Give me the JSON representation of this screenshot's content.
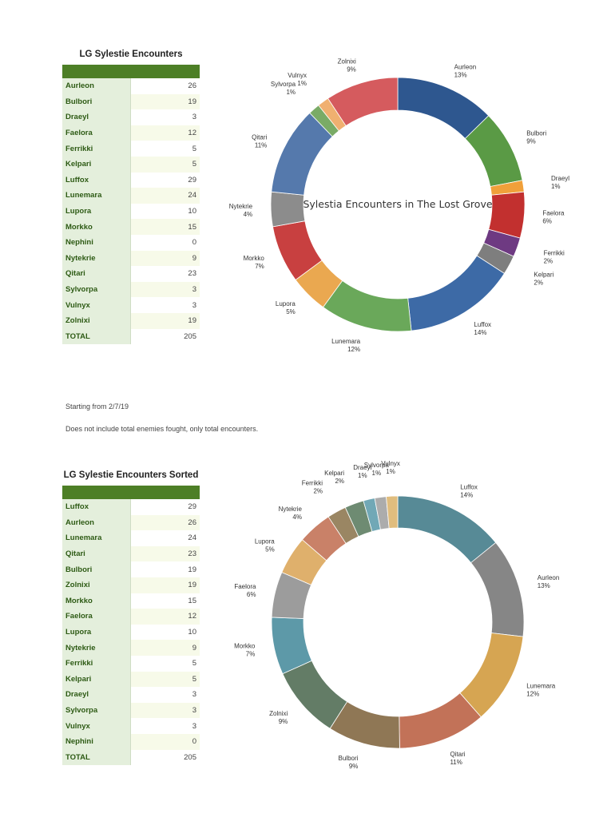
{
  "table1": {
    "title": "LG Sylestie Encounters",
    "rows": [
      {
        "name": "Aurleon",
        "value": "26"
      },
      {
        "name": "Bulbori",
        "value": "19"
      },
      {
        "name": "Draeyl",
        "value": "3"
      },
      {
        "name": "Faelora",
        "value": "12"
      },
      {
        "name": "Ferrikki",
        "value": "5"
      },
      {
        "name": "Kelpari",
        "value": "5"
      },
      {
        "name": "Luffox",
        "value": "29"
      },
      {
        "name": "Lunemara",
        "value": "24"
      },
      {
        "name": "Lupora",
        "value": "10"
      },
      {
        "name": "Morkko",
        "value": "15"
      },
      {
        "name": "Nephini",
        "value": "0"
      },
      {
        "name": "Nytekrie",
        "value": "9"
      },
      {
        "name": "Qitari",
        "value": "23"
      },
      {
        "name": "Sylvorpa",
        "value": "3"
      },
      {
        "name": "Vulnyx",
        "value": "3"
      },
      {
        "name": "Zolnixi",
        "value": "19"
      }
    ],
    "total_label": "TOTAL",
    "total_value": "205"
  },
  "notes": {
    "line1": "Starting from 2/7/19",
    "line2": "Does not include total enemies fought, only total encounters."
  },
  "table2": {
    "title": "LG Sylestie Encounters Sorted",
    "rows": [
      {
        "name": "Luffox",
        "value": "29"
      },
      {
        "name": "Aurleon",
        "value": "26"
      },
      {
        "name": "Lunemara",
        "value": "24"
      },
      {
        "name": "Qitari",
        "value": "23"
      },
      {
        "name": "Bulbori",
        "value": "19"
      },
      {
        "name": "Zolnixi",
        "value": "19"
      },
      {
        "name": "Morkko",
        "value": "15"
      },
      {
        "name": "Faelora",
        "value": "12"
      },
      {
        "name": "Lupora",
        "value": "10"
      },
      {
        "name": "Nytekrie",
        "value": "9"
      },
      {
        "name": "Ferrikki",
        "value": "5"
      },
      {
        "name": "Kelpari",
        "value": "5"
      },
      {
        "name": "Draeyl",
        "value": "3"
      },
      {
        "name": "Sylvorpa",
        "value": "3"
      },
      {
        "name": "Vulnyx",
        "value": "3"
      },
      {
        "name": "Nephini",
        "value": "0"
      }
    ],
    "total_label": "TOTAL",
    "total_value": "205"
  },
  "chart_data": [
    {
      "type": "pie",
      "style": "donut",
      "title": "Sylestia Encounters in The Lost Grove",
      "slices": [
        {
          "label": "Aurleon",
          "value": 26,
          "pct": "13%",
          "color": "#2e578f"
        },
        {
          "label": "Bulbori",
          "value": 19,
          "pct": "9%",
          "color": "#5a9a45"
        },
        {
          "label": "Draeyl",
          "value": 3,
          "pct": "1%",
          "color": "#f0a03a"
        },
        {
          "label": "Faelora",
          "value": 12,
          "pct": "6%",
          "color": "#c2302f"
        },
        {
          "label": "Ferrikki",
          "value": 5,
          "pct": "2%",
          "color": "#6e3a82"
        },
        {
          "label": "Kelpari",
          "value": 5,
          "pct": "2%",
          "color": "#7e7e7e"
        },
        {
          "label": "Luffox",
          "value": 29,
          "pct": "14%",
          "color": "#3d6aa6"
        },
        {
          "label": "Lunemara",
          "value": 24,
          "pct": "12%",
          "color": "#6aa85a"
        },
        {
          "label": "Lupora",
          "value": 10,
          "pct": "5%",
          "color": "#eaa850"
        },
        {
          "label": "Morkko",
          "value": 15,
          "pct": "7%",
          "color": "#c84040"
        },
        {
          "label": "Nytekrie",
          "value": 9,
          "pct": "4%",
          "color": "#8c8c8c"
        },
        {
          "label": "Qitari",
          "value": 23,
          "pct": "11%",
          "color": "#5579ac"
        },
        {
          "label": "Sylvorpa",
          "value": 3,
          "pct": "1%",
          "color": "#7aab66"
        },
        {
          "label": "Vulnyx",
          "value": 3,
          "pct": "1%",
          "color": "#f0b070"
        },
        {
          "label": "Zolnixi",
          "value": 19,
          "pct": "9%",
          "color": "#d55b5e"
        }
      ]
    },
    {
      "type": "pie",
      "style": "donut",
      "title": "",
      "slices": [
        {
          "label": "Luffox",
          "value": 29,
          "pct": "14%",
          "color": "#578a96"
        },
        {
          "label": "Aurleon",
          "value": 26,
          "pct": "13%",
          "color": "#868686"
        },
        {
          "label": "Lunemara",
          "value": 24,
          "pct": "12%",
          "color": "#d6a552"
        },
        {
          "label": "Qitari",
          "value": 23,
          "pct": "11%",
          "color": "#c27258"
        },
        {
          "label": "Bulbori",
          "value": 19,
          "pct": "9%",
          "color": "#8f7755"
        },
        {
          "label": "Zolnixi",
          "value": 19,
          "pct": "9%",
          "color": "#637c66"
        },
        {
          "label": "Morkko",
          "value": 15,
          "pct": "7%",
          "color": "#5d99a8"
        },
        {
          "label": "Faelora",
          "value": 12,
          "pct": "6%",
          "color": "#9c9c9c"
        },
        {
          "label": "Lupora",
          "value": 10,
          "pct": "5%",
          "color": "#dfb06c"
        },
        {
          "label": "Nytekrie",
          "value": 9,
          "pct": "4%",
          "color": "#c98168"
        },
        {
          "label": "Ferrikki",
          "value": 5,
          "pct": "2%",
          "color": "#9a8663"
        },
        {
          "label": "Kelpari",
          "value": 5,
          "pct": "2%",
          "color": "#6e8b72"
        },
        {
          "label": "Draeyl",
          "value": 3,
          "pct": "1%",
          "color": "#71a8b6"
        },
        {
          "label": "Sylvorpa",
          "value": 3,
          "pct": "1%",
          "color": "#acacac"
        },
        {
          "label": "Vulnyx",
          "value": 3,
          "pct": "1%",
          "color": "#e0bd7e"
        }
      ]
    }
  ]
}
